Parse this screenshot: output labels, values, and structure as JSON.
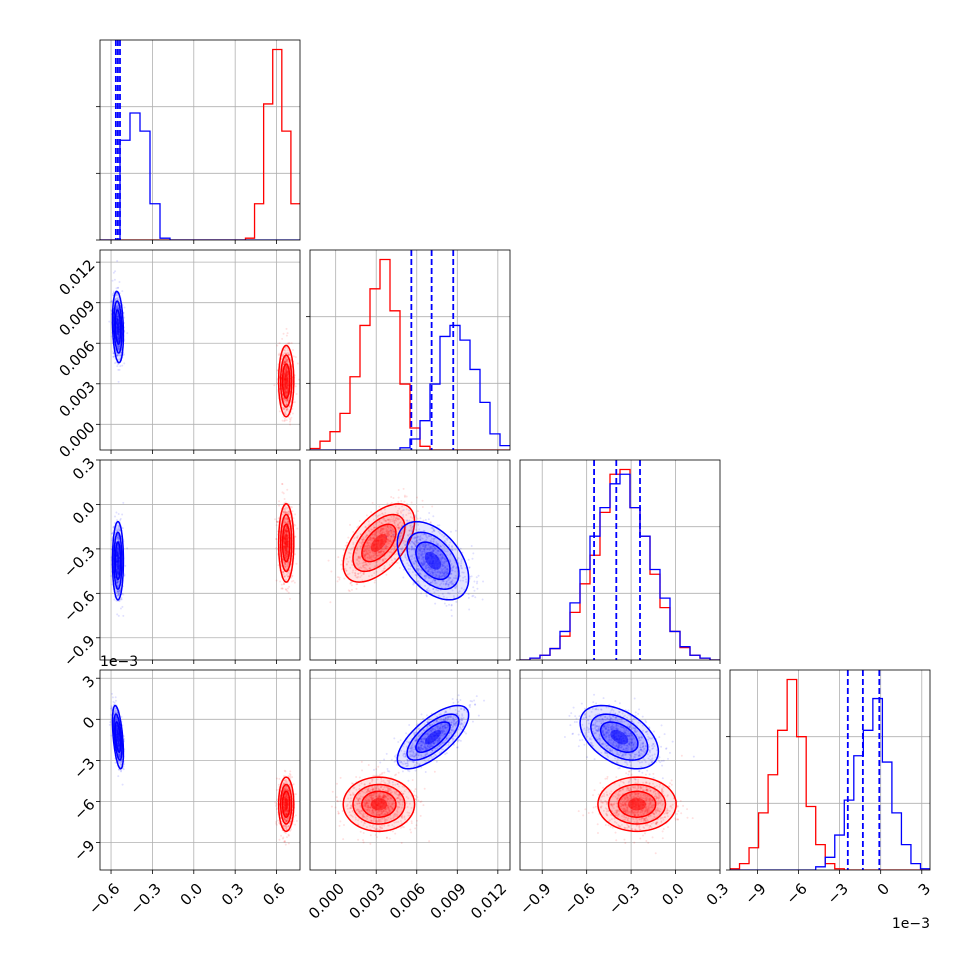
{
  "chart_data": {
    "type": "corner",
    "description_free": true,
    "parameters": [
      {
        "ticks": [
          -0.6,
          -0.3,
          0.0,
          0.3,
          0.6
        ],
        "range": [
          -0.68,
          0.77
        ],
        "tick_labels": [
          "−0.6",
          "−0.3",
          "0.0",
          "0.3",
          "0.6"
        ]
      },
      {
        "ticks": [
          0.0,
          0.003,
          0.006,
          0.009,
          0.012
        ],
        "range": [
          -0.0019,
          0.0129
        ],
        "tick_labels": [
          "0.000",
          "0.003",
          "0.006",
          "0.009",
          "0.012"
        ]
      },
      {
        "ticks": [
          -0.9,
          -0.6,
          -0.3,
          0.0,
          0.3
        ],
        "range": [
          -1.05,
          0.3
        ],
        "tick_labels": [
          "−0.9",
          "−0.6",
          "−0.3",
          "0.0",
          "0.3"
        ]
      },
      {
        "ticks": [
          -9,
          -6,
          -3,
          0,
          3
        ],
        "range": [
          -11.0,
          3.6
        ],
        "tick_labels": [
          "−9",
          "−6",
          "−3",
          "0",
          "3"
        ],
        "offset_label": "1e−3"
      }
    ],
    "series": [
      {
        "color": "#0000ff",
        "means": [
          -0.55,
          0.0072,
          -0.38,
          -1.3
        ],
        "sds": [
          0.018,
          0.0012,
          0.12,
          1.05
        ],
        "correlations": {
          "1_0": -0.2,
          "2_0": 0.0,
          "2_1": -0.45,
          "3_0": -0.5,
          "3_1": 0.7,
          "3_2": -0.45
        },
        "quantiles": [
          [
            -0.565,
            -0.55,
            -0.535
          ],
          [
            0.0056,
            0.0071,
            0.0087
          ],
          [
            -0.55,
            -0.4,
            -0.24
          ],
          [
            -2.4,
            -1.3,
            -0.1
          ]
        ],
        "hist": [
          [
            0,
            0,
            11,
            14,
            12,
            4,
            0.2,
            0,
            0,
            0,
            0,
            0,
            0,
            0,
            0,
            0,
            0,
            0,
            0,
            0
          ],
          [
            0,
            0,
            0,
            0,
            0,
            0,
            0,
            0,
            0,
            0.3,
            1.5,
            4,
            9,
            15.5,
            17,
            15,
            11,
            6.5,
            2.2,
            0.6
          ],
          [
            0,
            0.2,
            0.5,
            1.2,
            3,
            6,
            9.5,
            13,
            16,
            18.5,
            19.5,
            16,
            13,
            9.5,
            6.5,
            3,
            1.4,
            0.5,
            0.2,
            0
          ],
          [
            0,
            0,
            0,
            0,
            0,
            0,
            0,
            0,
            0,
            0.5,
            2,
            5.5,
            11,
            18,
            22,
            27,
            17,
            9,
            4,
            1,
            0.2
          ]
        ]
      },
      {
        "color": "#ff0000",
        "means": [
          0.67,
          0.0032,
          -0.26,
          -6.2
        ],
        "sds": [
          0.025,
          0.0012,
          0.12,
          0.9
        ],
        "correlations": {
          "1_0": 0.0,
          "2_0": 0.0,
          "2_1": 0.55,
          "3_0": 0.0,
          "3_1": 0.0,
          "3_2": 0.0
        },
        "hist": [
          [
            0,
            0,
            0,
            0,
            0,
            0,
            0,
            0,
            0,
            0,
            0,
            0,
            0,
            0,
            0,
            0,
            0.2,
            4,
            15,
            21,
            12,
            4
          ],
          [
            0.2,
            1.2,
            2.5,
            5,
            10,
            17,
            22,
            26,
            19,
            9,
            3,
            0.5,
            0,
            0,
            0,
            0,
            0,
            0,
            0,
            0
          ],
          [
            0,
            0.2,
            0.5,
            1.2,
            2.5,
            5,
            8,
            11,
            15.5,
            19.5,
            20,
            16,
            13,
            9,
            5.5,
            3,
            1.3,
            0.5,
            0.2,
            0
          ],
          [
            0.2,
            1,
            3.5,
            9,
            15,
            22,
            30,
            21,
            10,
            4,
            1,
            0.2,
            0,
            0,
            0,
            0,
            0,
            0,
            0,
            0,
            0
          ]
        ]
      }
    ],
    "grid": true
  }
}
